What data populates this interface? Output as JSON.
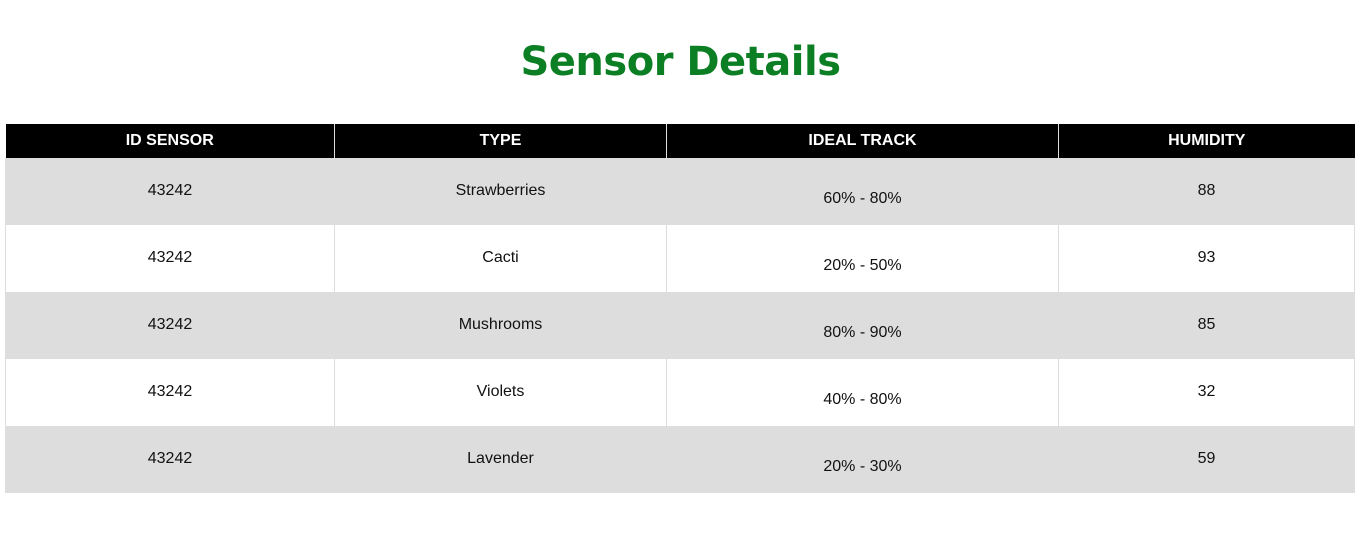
{
  "page": {
    "title": "Sensor Details"
  },
  "colors": {
    "title": "#0c7f24",
    "header_bg": "#000000",
    "header_text": "#ffffff",
    "row_alt_bg": "#dddddd",
    "row_bg": "#ffffff"
  },
  "table": {
    "headers": [
      "ID SENSOR",
      "TYPE",
      "IDEAL TRACK",
      "HUMIDITY"
    ],
    "rows": [
      {
        "id": "43242",
        "type": "Strawberries",
        "ideal_track": "60% - 80%",
        "humidity": "88"
      },
      {
        "id": "43242",
        "type": "Cacti",
        "ideal_track": "20% - 50%",
        "humidity": "93"
      },
      {
        "id": "43242",
        "type": "Mushrooms",
        "ideal_track": "80% - 90%",
        "humidity": "85"
      },
      {
        "id": "43242",
        "type": "Violets",
        "ideal_track": "40% - 80%",
        "humidity": "32"
      },
      {
        "id": "43242",
        "type": "Lavender",
        "ideal_track": "20% - 30%",
        "humidity": "59"
      }
    ]
  }
}
